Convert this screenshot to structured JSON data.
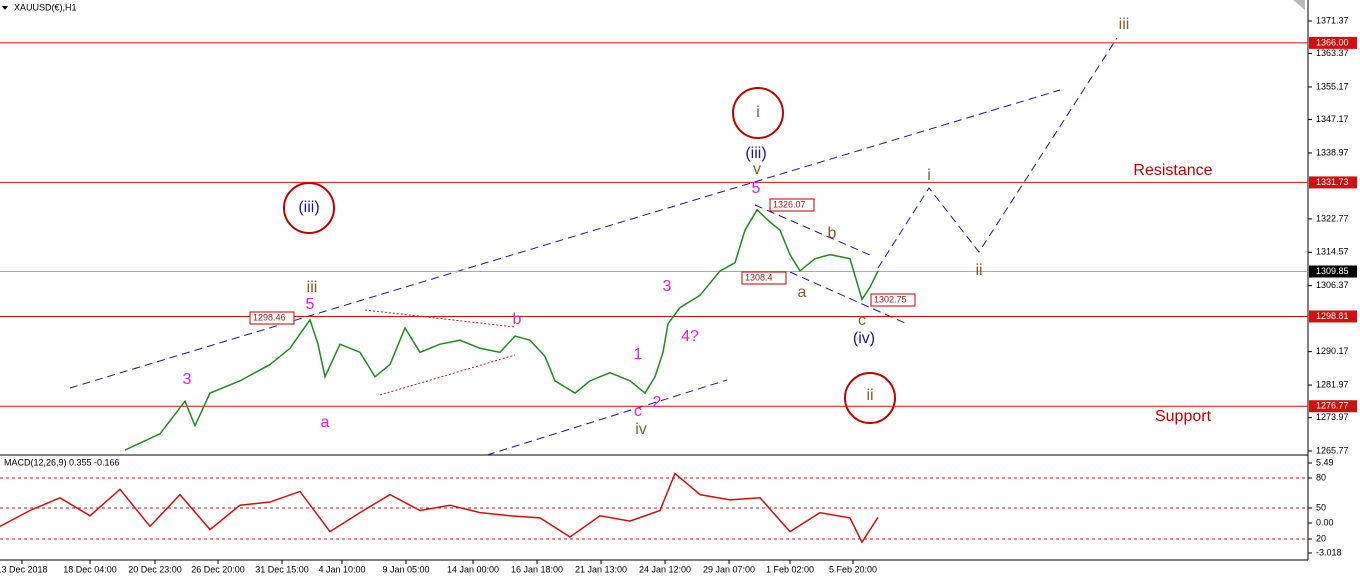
{
  "chart_data": {
    "type": "line",
    "title": "XAUUSD(€),H1",
    "color": "#1f8a1f",
    "xlim": [
      0,
      1308
    ],
    "ylim": [
      1264.79,
      1376.53
    ],
    "yticks": [
      1371.37,
      1363.37,
      1355.17,
      1347.17,
      1338.97,
      1322.77,
      1314.57,
      1306.37,
      1290.17,
      1281.97,
      1273.97,
      1265.77
    ],
    "xticks": [
      {
        "value": 22,
        "label": "13 Dec 2018"
      },
      {
        "value": 90,
        "label": "18 Dec 04:00"
      },
      {
        "value": 155,
        "label": "20 Dec 23:00"
      },
      {
        "value": 218,
        "label": "26 Dec 20:00"
      },
      {
        "value": 282,
        "label": "31 Dec 15:00"
      },
      {
        "value": 342,
        "label": "4 Jan 10:00"
      },
      {
        "value": 406,
        "label": "9 Jan 05:00"
      },
      {
        "value": 473,
        "label": "14 Jan 00:00"
      },
      {
        "value": 537,
        "label": "16 Jan 18:00"
      },
      {
        "value": 601,
        "label": "21 Jan 13:00"
      },
      {
        "value": 665,
        "label": "24 Jan 12:00"
      },
      {
        "value": 729,
        "label": "29 Jan 07:00"
      },
      {
        "value": 790,
        "label": "1 Feb 02:00"
      },
      {
        "value": 853,
        "label": "5 Feb 20:00"
      }
    ],
    "x": [
      125,
      160,
      185,
      195,
      210,
      240,
      270,
      290,
      310,
      318,
      325,
      340,
      360,
      375,
      390,
      405,
      420,
      440,
      460,
      480,
      500,
      515,
      530,
      545,
      555,
      575,
      590,
      610,
      630,
      645,
      655,
      663,
      668,
      680,
      700,
      720,
      735,
      745,
      757,
      770,
      780,
      790,
      800,
      815,
      830,
      850,
      862,
      870,
      878
    ],
    "values": [
      1266,
      1270,
      1278,
      1272,
      1280,
      1283,
      1287,
      1291,
      1298,
      1292,
      1284,
      1292,
      1290,
      1284,
      1287,
      1296,
      1290,
      1292,
      1293,
      1291,
      1290,
      1294,
      1293,
      1289,
      1283,
      1280,
      1283,
      1285,
      1283,
      1280,
      1284,
      1290,
      1297,
      1301,
      1304,
      1310,
      1312,
      1320,
      1325,
      1322,
      1320,
      1314,
      1310,
      1313,
      1314,
      1313,
      1303,
      1306,
      1310
    ],
    "levels": [
      {
        "value": 1366,
        "label": "1366.00",
        "color": "#d01010"
      },
      {
        "value": 1331.73,
        "label": "1331.73",
        "color": "#d01010"
      },
      {
        "value": 1298.81,
        "label": "1298.81",
        "color": "#d01010"
      },
      {
        "value": 1276.77,
        "label": "1276.77",
        "color": "#d01010"
      },
      {
        "value": 1309.85,
        "label": "1309.85",
        "color": "#000000"
      }
    ],
    "price_labels": [
      1298.46,
      1326.07,
      1308.4,
      1302.75
    ],
    "annotations": [
      "(iii)",
      "i",
      "ii",
      "(iii)",
      "v",
      "5",
      "3",
      "4?",
      "1",
      "2",
      "c",
      "iv",
      "3",
      "iii",
      "5",
      "a",
      "b",
      "a",
      "b",
      "c",
      "(iv)",
      "i",
      "ii",
      "iii",
      "Resistance",
      "Support"
    ],
    "macd": {
      "title": "MACD(12,26,9) 0.355 -0.166",
      "color": "#d01010",
      "ylim": [
        -3.018,
        5.49
      ],
      "yticks": [
        5.49,
        {
          "value": 80,
          "label": "80"
        },
        {
          "value": 50,
          "label": "50"
        },
        {
          "value": 0,
          "label": "0.00"
        },
        {
          "value": 20,
          "label": "20"
        },
        -3.018
      ],
      "x": [
        0,
        30,
        60,
        90,
        120,
        150,
        180,
        210,
        240,
        270,
        300,
        330,
        360,
        390,
        420,
        450,
        480,
        510,
        540,
        570,
        600,
        630,
        660,
        675,
        700,
        730,
        760,
        790,
        820,
        850,
        862,
        878
      ],
      "values": [
        -0.5,
        1.0,
        2.2,
        0.5,
        3.0,
        -0.5,
        2.5,
        -0.8,
        1.5,
        1.8,
        2.8,
        -1.0,
        0.8,
        2.5,
        1.0,
        1.5,
        0.8,
        0.5,
        0.3,
        -1.5,
        0.5,
        0.0,
        1.0,
        4.5,
        2.5,
        2.0,
        2.2,
        -1.0,
        0.8,
        0.3,
        -2.0,
        0.355
      ]
    }
  }
}
